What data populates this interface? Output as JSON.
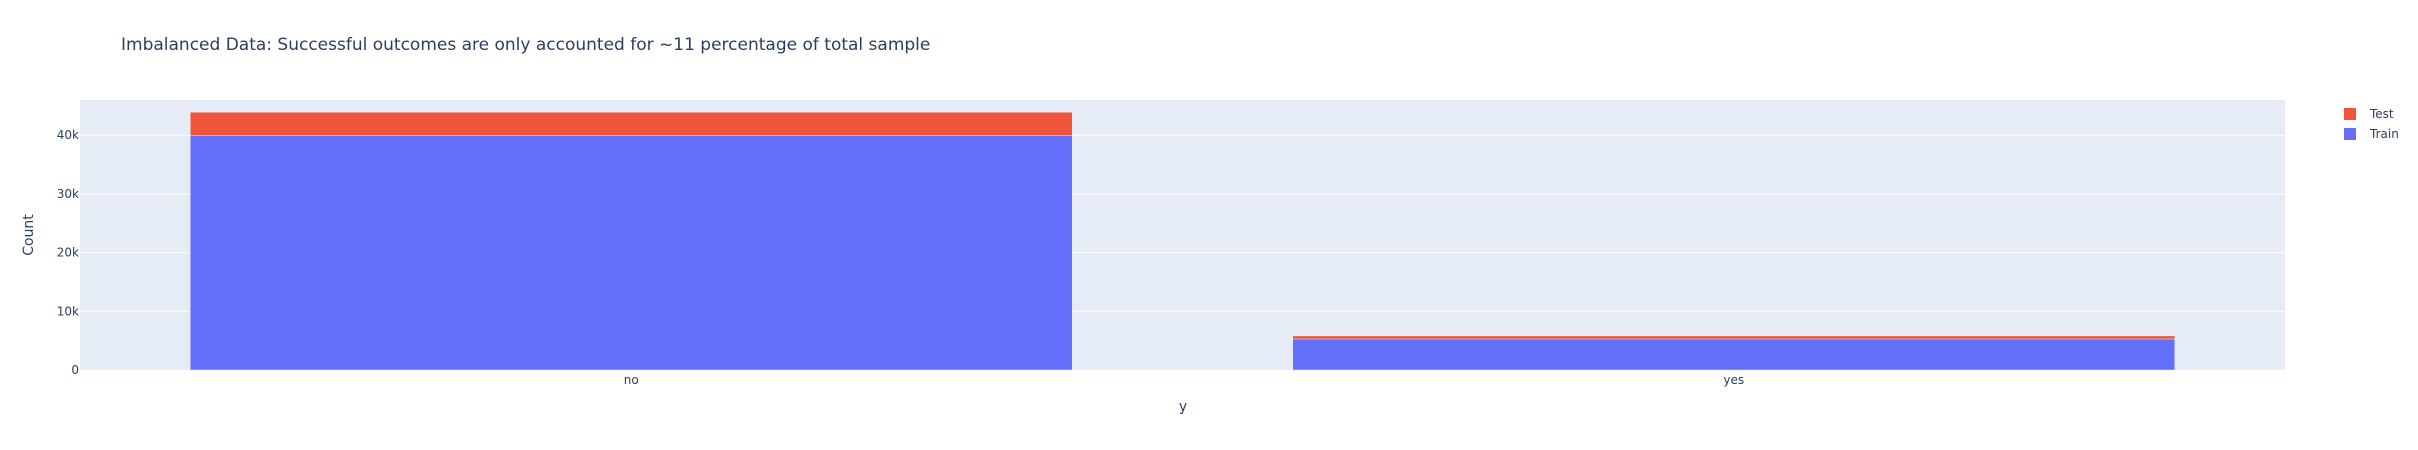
{
  "chart_data": {
    "type": "bar",
    "barmode": "stack",
    "title": "Imbalanced Data: Successful outcomes are only accounted for ~11 percentage of total sample",
    "xlabel": "y",
    "ylabel": "Count",
    "categories": [
      "no",
      "yes"
    ],
    "series": [
      {
        "name": "Train",
        "values": [
          39922,
          5289
        ],
        "color": "#636efa"
      },
      {
        "name": "Test",
        "values": [
          4000,
          521
        ],
        "color": "#ef553b"
      }
    ],
    "ylim": [
      0,
      46000
    ],
    "yticks": [
      0,
      10000,
      20000,
      30000,
      40000
    ],
    "ytick_labels": [
      "0",
      "10k",
      "20k",
      "30k",
      "40k"
    ],
    "grid": true,
    "legend": {
      "position": "top-right",
      "order": [
        "Test",
        "Train"
      ]
    },
    "colors": {
      "plot_background": "#e5ecf6",
      "gridline": "#ffffff",
      "text": "#2a3f5f"
    }
  }
}
